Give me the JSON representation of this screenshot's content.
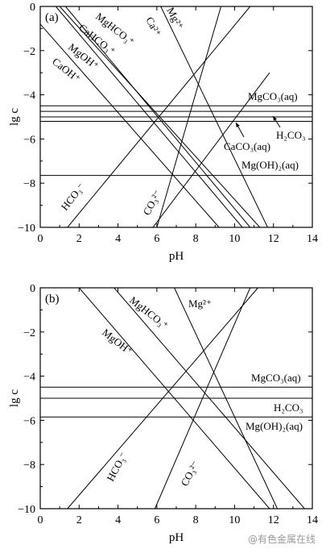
{
  "watermark": "@有色金属在线",
  "chart_data": [
    {
      "type": "line",
      "panel": "(a)",
      "xlabel": "pH",
      "ylabel": "lg c",
      "xlim": [
        0,
        14
      ],
      "ylim": [
        -10,
        0
      ],
      "xticks": [
        "0",
        "2",
        "4",
        "6",
        "8",
        "10",
        "12",
        "14"
      ],
      "yticks": [
        "0",
        "-2",
        "-4",
        "-6",
        "-8",
        "-10"
      ],
      "grid": false,
      "series": [
        {
          "name": "MgHCO3+",
          "label": "MgHCO₃⁺",
          "points": [
            [
              1.3,
              0
            ],
            [
              10.8,
              -10
            ]
          ]
        },
        {
          "name": "CaHCO3+",
          "label": "CaHCO₃⁺",
          "points": [
            [
              1.0,
              0
            ],
            [
              11.3,
              -10
            ]
          ]
        },
        {
          "name": "MgOH+",
          "label": "MgOH⁺",
          "points": [
            [
              0.8,
              0
            ],
            [
              10.4,
              -10
            ]
          ]
        },
        {
          "name": "CaOH+",
          "label": "CaOH⁺",
          "points": [
            [
              0.0,
              -0.8
            ],
            [
              9.2,
              -10
            ]
          ]
        },
        {
          "name": "Ca2+",
          "label": "Ca²⁺",
          "points": [
            [
              6.0,
              -10
            ],
            [
              9.3,
              0
            ]
          ]
        },
        {
          "name": "Mg2+",
          "label": "Mg²⁺",
          "points": [
            [
              6.2,
              0
            ],
            [
              11.7,
              -10
            ]
          ]
        },
        {
          "name": "HCO3-",
          "label": "HCO₃⁻",
          "points": [
            [
              1.4,
              -10
            ],
            [
              10.8,
              0
            ]
          ]
        },
        {
          "name": "CO3 2-",
          "label": "CO₃²⁻",
          "points": [
            [
              5.8,
              -10
            ],
            [
              11.8,
              -3
            ]
          ]
        },
        {
          "name": "MgCO3(aq)",
          "label": "MgCO₃(aq)",
          "points": [
            [
              0,
              -4.5
            ],
            [
              14,
              -4.5
            ]
          ]
        },
        {
          "name": "MgCO3(aq) lower",
          "label": "",
          "points": [
            [
              0,
              -4.75
            ],
            [
              14,
              -4.75
            ]
          ]
        },
        {
          "name": "CaCO3(aq)",
          "label": "CaCO₃(aq)",
          "points": [
            [
              0,
              -5.0
            ],
            [
              14,
              -5.0
            ]
          ]
        },
        {
          "name": "H2CO3",
          "label": "H₂CO₃",
          "points": [
            [
              0,
              -5.2
            ],
            [
              14,
              -5.2
            ]
          ]
        },
        {
          "name": "Mg(OH)2(aq)",
          "label": "Mg(OH)₂(aq)",
          "points": [
            [
              0,
              -7.65
            ],
            [
              14,
              -7.65
            ]
          ]
        }
      ]
    },
    {
      "type": "line",
      "panel": "(b)",
      "xlabel": "pH",
      "ylabel": "lg c",
      "xlim": [
        0,
        14
      ],
      "ylim": [
        -10,
        0
      ],
      "xticks": [
        "0",
        "2",
        "4",
        "6",
        "8",
        "10",
        "12",
        "14"
      ],
      "yticks": [
        "0",
        "-2",
        "-4",
        "-6",
        "-8",
        "-10"
      ],
      "grid": false,
      "series": [
        {
          "name": "MgHCO3+",
          "label": "MgHCO₃⁺",
          "points": [
            [
              3.8,
              0
            ],
            [
              13.6,
              -10
            ]
          ]
        },
        {
          "name": "MgOH+",
          "label": "MgOH⁺",
          "points": [
            [
              2.0,
              0
            ],
            [
              11.8,
              -10
            ]
          ]
        },
        {
          "name": "Mg2+",
          "label": "Mg²⁺",
          "points": [
            [
              6.9,
              0
            ],
            [
              12.2,
              -10
            ]
          ]
        },
        {
          "name": "HCO3-",
          "label": "HCO₃⁻",
          "points": [
            [
              1.4,
              -10
            ],
            [
              11.2,
              0
            ]
          ]
        },
        {
          "name": "CO3 2-",
          "label": "CO₃²⁻",
          "points": [
            [
              5.9,
              -10
            ],
            [
              10.8,
              0
            ]
          ]
        },
        {
          "name": "MgCO3(aq)",
          "label": "MgCO₃(aq)",
          "points": [
            [
              0,
              -4.5
            ],
            [
              14,
              -4.5
            ]
          ]
        },
        {
          "name": "H2CO3",
          "label": "H₂CO₃",
          "points": [
            [
              0,
              -5.0
            ],
            [
              14,
              -5.0
            ]
          ]
        },
        {
          "name": "Mg(OH)2(aq)",
          "label": "Mg(OH)₂(aq)",
          "points": [
            [
              0,
              -5.85
            ],
            [
              14,
              -5.85
            ]
          ]
        }
      ]
    }
  ]
}
